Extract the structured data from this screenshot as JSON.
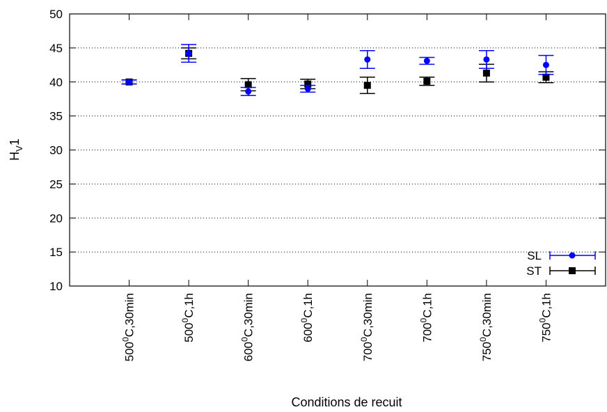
{
  "chart_data": {
    "type": "scatter",
    "xlabel": "Conditions de recuit",
    "ylabel": {
      "base": "H",
      "sub": "V",
      "tail": "1"
    },
    "ylim": [
      10,
      50
    ],
    "yticks": [
      10,
      15,
      20,
      25,
      30,
      35,
      40,
      45,
      50
    ],
    "grid": "horizontal dotted",
    "legend_position": "bottom-right",
    "categories": [
      {
        "pre": "500",
        "sup": "0",
        "post": "C,30min"
      },
      {
        "pre": "500",
        "sup": "0",
        "post": "C,1h"
      },
      {
        "pre": "600",
        "sup": "0",
        "post": "C,30min"
      },
      {
        "pre": "600",
        "sup": "0",
        "post": "C,1h"
      },
      {
        "pre": "700",
        "sup": "0",
        "post": "C,30min"
      },
      {
        "pre": "700",
        "sup": "0",
        "post": "C,1h"
      },
      {
        "pre": "750",
        "sup": "0",
        "post": "C,30min"
      },
      {
        "pre": "750",
        "sup": "0",
        "post": "C,1h"
      }
    ],
    "series": [
      {
        "name": "SL",
        "color": "#0000ff",
        "marker": "circle",
        "values": [
          40.0,
          44.2,
          38.6,
          39.0,
          43.3,
          43.1,
          43.3,
          42.5
        ],
        "errors": [
          0.3,
          1.3,
          0.6,
          0.5,
          1.3,
          0.5,
          1.3,
          1.4
        ]
      },
      {
        "name": "ST",
        "color": "#000000",
        "marker": "square",
        "values": [
          40.0,
          44.2,
          39.6,
          39.7,
          39.5,
          40.1,
          41.3,
          40.7
        ],
        "errors": [
          0.3,
          0.8,
          0.9,
          0.7,
          1.2,
          0.6,
          1.3,
          0.8
        ]
      }
    ]
  }
}
